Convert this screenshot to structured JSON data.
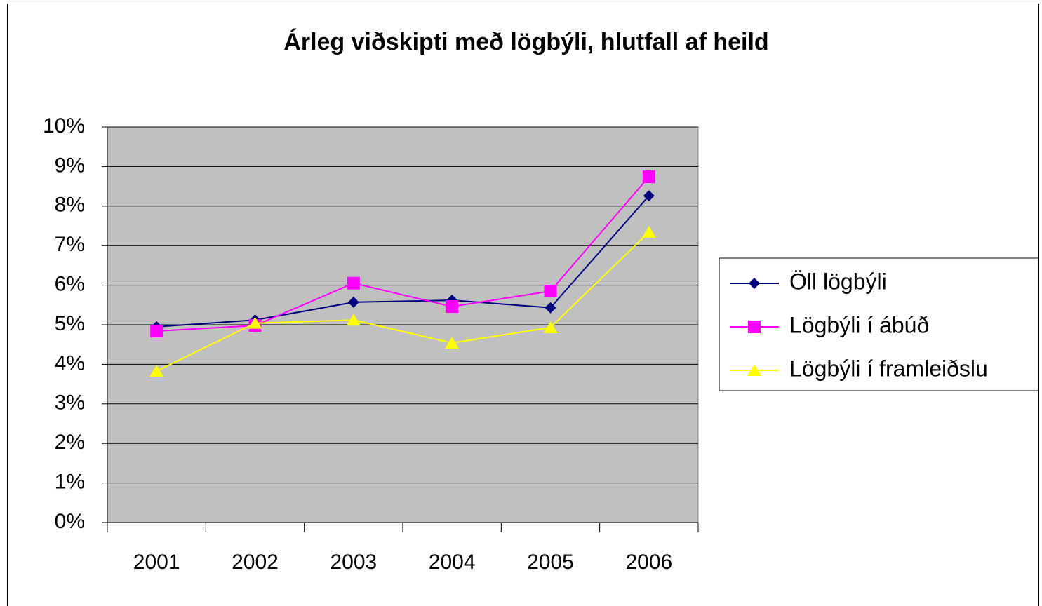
{
  "chart_data": {
    "type": "line",
    "title": "Árleg viðskipti með lögbýli, hlutfall af heild",
    "categories": [
      "2001",
      "2002",
      "2003",
      "2004",
      "2005",
      "2006"
    ],
    "series": [
      {
        "name": "Öll lögbýli",
        "color": "#000080",
        "marker": "diamond",
        "values": [
          4.95,
          5.12,
          5.57,
          5.62,
          5.43,
          8.26
        ]
      },
      {
        "name": "Lögbýli í ábúð",
        "color": "#ff00ff",
        "marker": "square",
        "values": [
          4.84,
          4.98,
          6.05,
          5.46,
          5.85,
          8.74
        ]
      },
      {
        "name": "Lögbýli í framleiðslu",
        "color": "#ffff00",
        "marker": "triangle",
        "values": [
          3.83,
          5.04,
          5.12,
          4.54,
          4.93,
          7.34
        ]
      }
    ],
    "ylim": [
      0,
      10
    ],
    "yticks": [
      {
        "value": 0,
        "label": "0%"
      },
      {
        "value": 1,
        "label": "1%"
      },
      {
        "value": 2,
        "label": "2%"
      },
      {
        "value": 3,
        "label": "3%"
      },
      {
        "value": 4,
        "label": "4%"
      },
      {
        "value": 5,
        "label": "5%"
      },
      {
        "value": 6,
        "label": "6%"
      },
      {
        "value": 7,
        "label": "7%"
      },
      {
        "value": 8,
        "label": "8%"
      },
      {
        "value": 9,
        "label": "9%"
      },
      {
        "value": 10,
        "label": "10%"
      }
    ],
    "grid": true,
    "plot_background": "#c0c0c0",
    "legend": "right"
  }
}
